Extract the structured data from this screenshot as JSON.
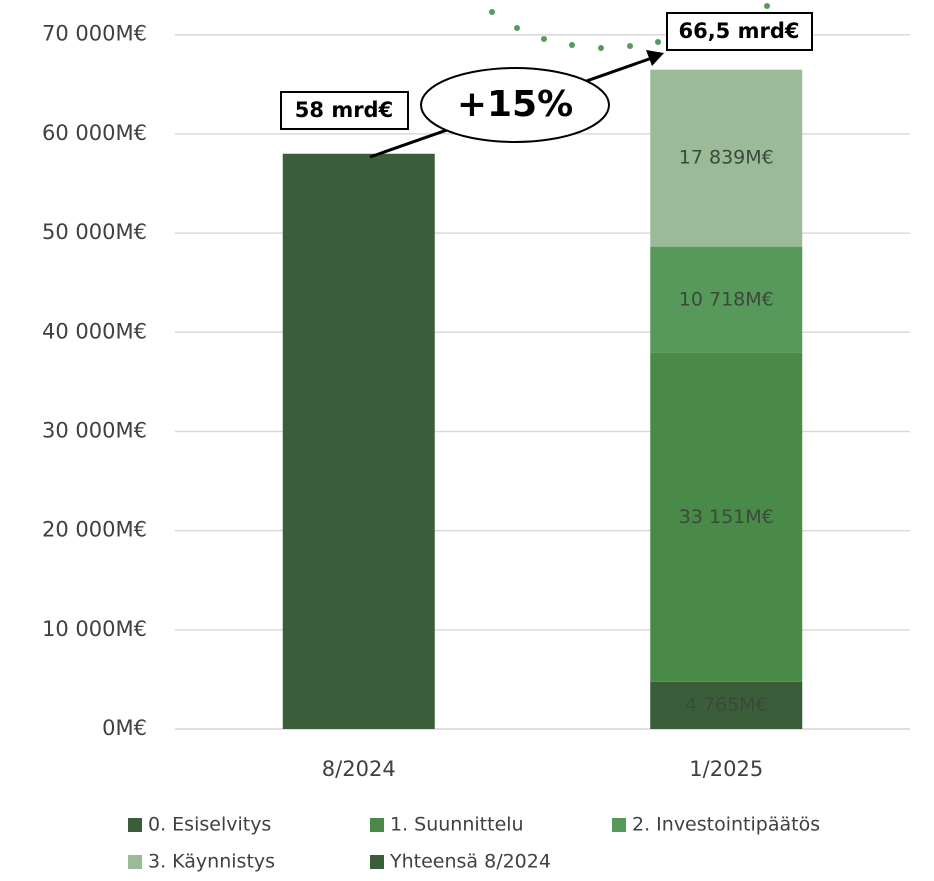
{
  "chart_data": {
    "type": "stacked_bar",
    "categories": [
      "8/2024",
      "1/2025"
    ],
    "series": [
      {
        "name": "0. Esiselvitys",
        "color": "#3b5e3a",
        "values": [
          null,
          4765
        ],
        "value_labels": [
          null,
          "4 765M€"
        ]
      },
      {
        "name": "1. Suunnittelu",
        "color": "#4a8a48",
        "values": [
          null,
          33151
        ],
        "value_labels": [
          null,
          "33 151M€"
        ]
      },
      {
        "name": "2. Investointipäätös",
        "color": "#56995a",
        "values": [
          null,
          10718
        ],
        "value_labels": [
          null,
          "10 718M€"
        ]
      },
      {
        "name": "3. Käynnistys",
        "color": "#9bbb98",
        "values": [
          null,
          17839
        ],
        "value_labels": [
          null,
          "17 839M€"
        ]
      },
      {
        "name": "Yhteensä 8/2024",
        "color": "#3b5e3a",
        "values": [
          58000,
          null
        ]
      }
    ],
    "ylim": [
      0,
      73500
    ],
    "yticks": [
      {
        "value": 0,
        "label": "0M€"
      },
      {
        "value": 10000,
        "label": "10 000M€"
      },
      {
        "value": 20000,
        "label": "20 000M€"
      },
      {
        "value": 30000,
        "label": "30 000M€"
      },
      {
        "value": 40000,
        "label": "40 000M€"
      },
      {
        "value": 50000,
        "label": "50 000M€"
      },
      {
        "value": 60000,
        "label": "60 000M€"
      },
      {
        "value": 70000,
        "label": "70 000M€"
      }
    ],
    "grid": true,
    "annotations": [
      "58 mrd€",
      "+15%",
      "66,5 mrd€"
    ]
  }
}
